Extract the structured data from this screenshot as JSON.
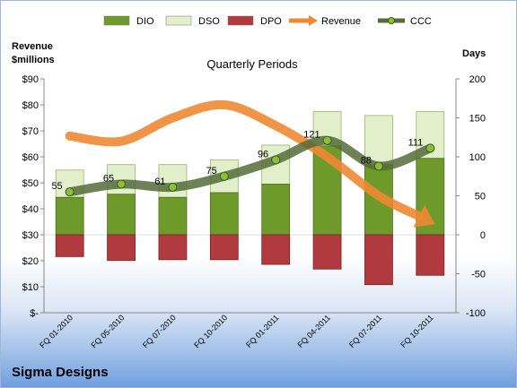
{
  "chart_data": {
    "type": "bar",
    "title": "Quarterly Periods",
    "left_axis_label": "Revenue\n$millions",
    "right_axis_label": "Days",
    "company": "Sigma Designs",
    "categories": [
      "FQ 01-2010",
      "FQ 05-2010",
      "FQ 07-2010",
      "FQ 10-2010",
      "FQ 01-2011",
      "FQ 04-2011",
      "FQ 07-2011",
      "FQ 10-2011"
    ],
    "left_ticks": [
      "$90",
      "$80",
      "$70",
      "$60",
      "$50",
      "$40",
      "$30",
      "$20",
      "$10",
      "$-"
    ],
    "right_ticks": [
      "200",
      "150",
      "100",
      "50",
      "0",
      "-50",
      "-100"
    ],
    "ylim_left": [
      0,
      90
    ],
    "ylim_right": [
      -100,
      200
    ],
    "series": [
      {
        "name": "DIO",
        "type": "bar",
        "color": "#6e9a2b",
        "values": [
          48,
          52,
          48,
          54,
          65,
          114,
          90,
          98
        ]
      },
      {
        "name": "DSO",
        "type": "bar-stacked",
        "color": "#e2efcb",
        "values": [
          35,
          38,
          42,
          42,
          50,
          44,
          63,
          60
        ]
      },
      {
        "name": "DPO",
        "type": "bar-negative",
        "color": "#b13a3e",
        "values": [
          -28,
          -33,
          -32,
          -32,
          -38,
          -44,
          -64,
          -52
        ]
      },
      {
        "name": "Revenue",
        "type": "line",
        "axis": "left",
        "color": "#ee8833",
        "values": [
          68,
          66,
          75,
          80,
          72,
          60,
          45,
          35
        ]
      },
      {
        "name": "CCC",
        "type": "line",
        "axis": "right",
        "color": "#556b3a",
        "values": [
          55,
          65,
          61,
          75,
          96,
          121,
          88,
          111
        ],
        "labels": [
          "55",
          "65",
          "61",
          "75",
          "96",
          "121",
          "88",
          "111"
        ]
      }
    ],
    "legend": [
      "DIO",
      "DSO",
      "DPO",
      "Revenue",
      "CCC"
    ],
    "legend_position": "top",
    "grid": false
  }
}
